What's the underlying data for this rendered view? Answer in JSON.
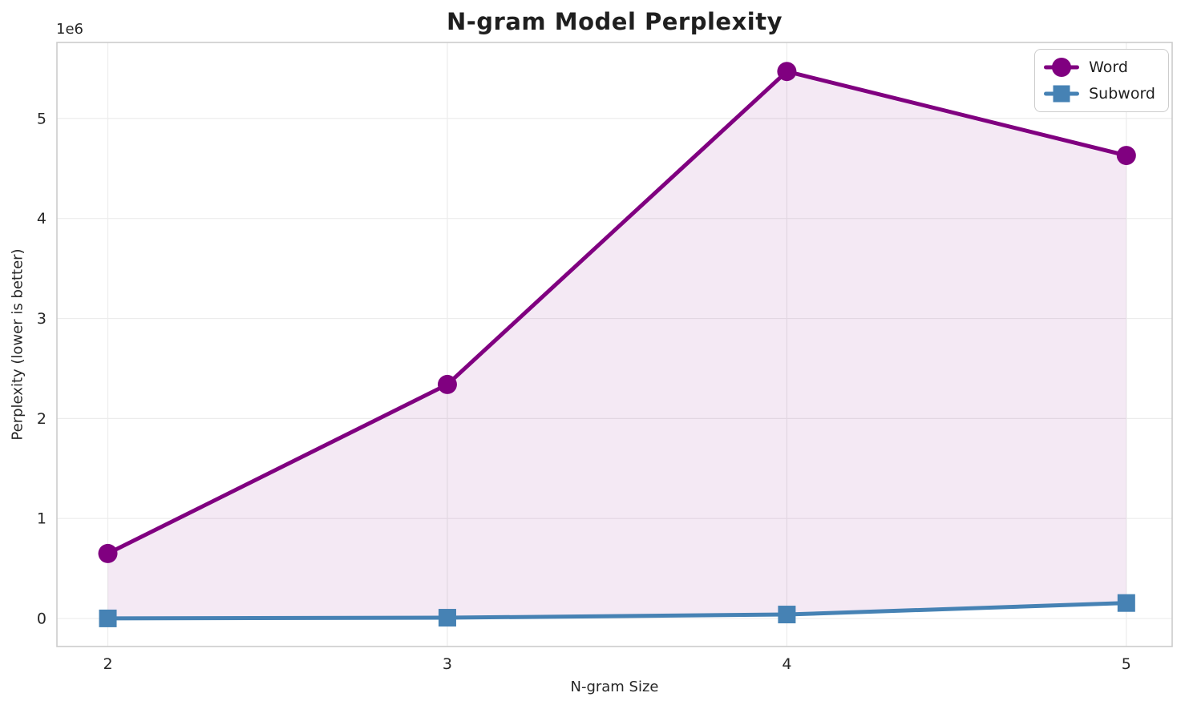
{
  "figure": {
    "background": "#ffffff"
  },
  "chart_data": {
    "type": "line",
    "title": "N-gram Model Perplexity",
    "xlabel": "N-gram Size",
    "ylabel": "Perplexity (lower is better)",
    "y_offset_text": "1e6",
    "x": [
      2,
      3,
      4,
      5
    ],
    "xtick_labels": [
      "2",
      "3",
      "4",
      "5"
    ],
    "ytick_values": [
      0,
      1000000,
      2000000,
      3000000,
      4000000,
      5000000
    ],
    "ytick_labels": [
      "0",
      "1",
      "2",
      "3",
      "4",
      "5"
    ],
    "xlim": [
      1.85,
      5.135
    ],
    "ylim": [
      -280000,
      5760000
    ],
    "grid": true,
    "legend_position": "upper right",
    "fill_between_series": true,
    "series": [
      {
        "name": "Word",
        "marker": "circle",
        "color": "#800080",
        "values": [
          650000,
          2340000,
          5470000,
          4630000
        ]
      },
      {
        "name": "Subword",
        "marker": "square",
        "color": "#4682b4",
        "values": [
          1000,
          8000,
          40000,
          155000
        ]
      }
    ],
    "styles": {
      "grid_color": "#ececec",
      "spine_color": "#cccccc",
      "tick_text_color": "#262626",
      "fill_color": "rgba(128,0,128,0.085)"
    }
  }
}
